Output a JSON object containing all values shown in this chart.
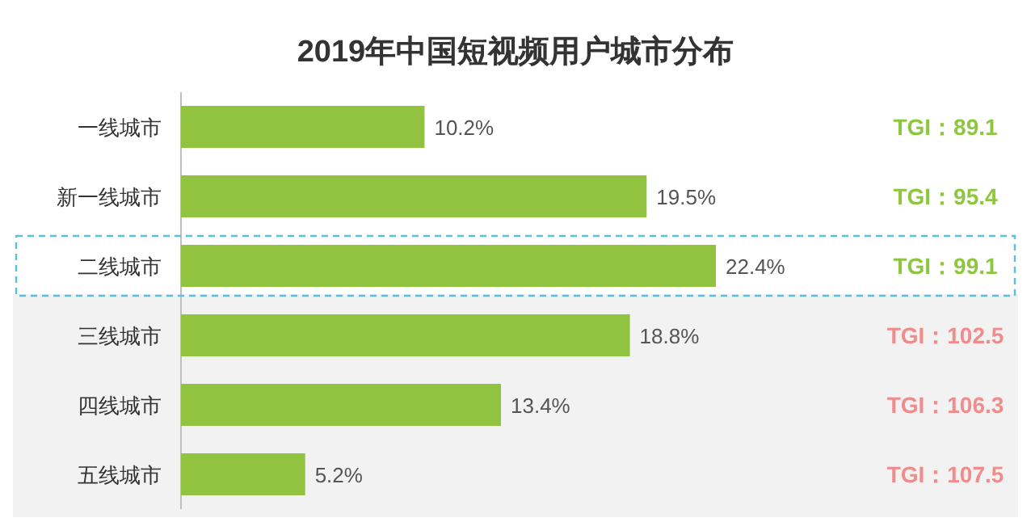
{
  "chart_data": {
    "type": "bar",
    "orientation": "horizontal",
    "title": "2019年中国短视频用户城市分布",
    "categories": [
      "一线城市",
      "新一线城市",
      "二线城市",
      "三线城市",
      "四线城市",
      "五线城市"
    ],
    "values": [
      10.2,
      19.5,
      22.4,
      18.8,
      13.4,
      5.2
    ],
    "value_labels": [
      "10.2%",
      "19.5%",
      "22.4%",
      "18.8%",
      "13.4%",
      "5.2%"
    ],
    "color": "#92c340",
    "bands": [
      {
        "axis": "y",
        "from": "三线城市",
        "to": "五线城市",
        "color": "#f2f2f2"
      }
    ],
    "annotations": [
      "TGI：89.1",
      "TGI：95.4",
      "TGI：99.1",
      "TGI：102.5",
      "TGI：106.3",
      "TGI：107.5"
    ]
  }
}
